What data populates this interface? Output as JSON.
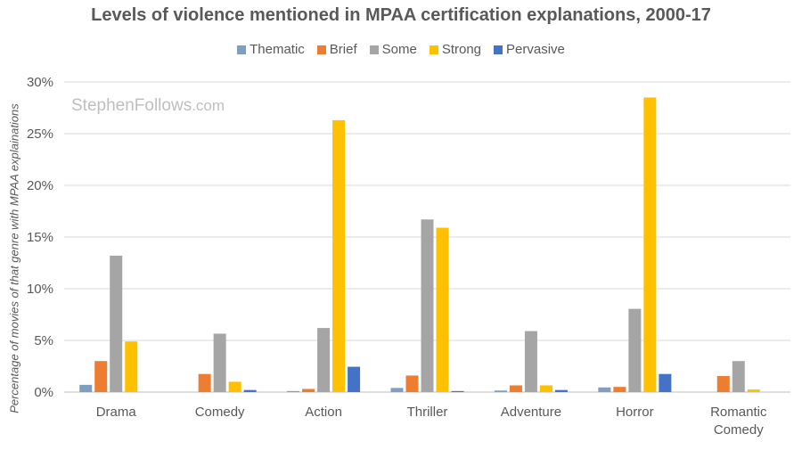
{
  "chart_data": {
    "type": "bar",
    "title": "Levels of violence mentioned in MPAA certification explanations, 2000-17",
    "xlabel": "",
    "ylabel": "Percentage of movies of that genre with MPAA explainations",
    "ylim": [
      0,
      30
    ],
    "yticks": [
      "0%",
      "5%",
      "10%",
      "15%",
      "20%",
      "25%",
      "30%"
    ],
    "ytick_values": [
      0,
      5,
      10,
      15,
      20,
      25,
      30
    ],
    "categories": [
      "Drama",
      "Comedy",
      "Action",
      "Thriller",
      "Adventure",
      "Horror",
      "Romantic Comedy"
    ],
    "category_lines": [
      [
        "Drama"
      ],
      [
        "Comedy"
      ],
      [
        "Action"
      ],
      [
        "Thriller"
      ],
      [
        "Adventure"
      ],
      [
        "Horror"
      ],
      [
        "Romantic",
        "Comedy"
      ]
    ],
    "series": [
      {
        "name": "Thematic",
        "color": "#7F9FC1",
        "values": [
          0.7,
          0,
          0.1,
          0.4,
          0.15,
          0.45,
          0
        ]
      },
      {
        "name": "Brief",
        "color": "#ED7D31",
        "values": [
          3.0,
          1.75,
          0.3,
          1.6,
          0.65,
          0.5,
          1.55
        ]
      },
      {
        "name": "Some",
        "color": "#A5A5A5",
        "values": [
          13.2,
          5.65,
          6.2,
          16.7,
          5.9,
          8.05,
          3.0
        ]
      },
      {
        "name": "Strong",
        "color": "#FFC000",
        "values": [
          4.9,
          1.0,
          26.3,
          15.9,
          0.65,
          28.5,
          0.25
        ]
      },
      {
        "name": "Pervasive",
        "color": "#4472C4",
        "values": [
          0,
          0.2,
          2.45,
          0.1,
          0.2,
          1.75,
          0
        ]
      }
    ],
    "grid": true,
    "legend_position": "top-center"
  },
  "watermark": {
    "main": "StephenFollows",
    "domain": ".com"
  }
}
